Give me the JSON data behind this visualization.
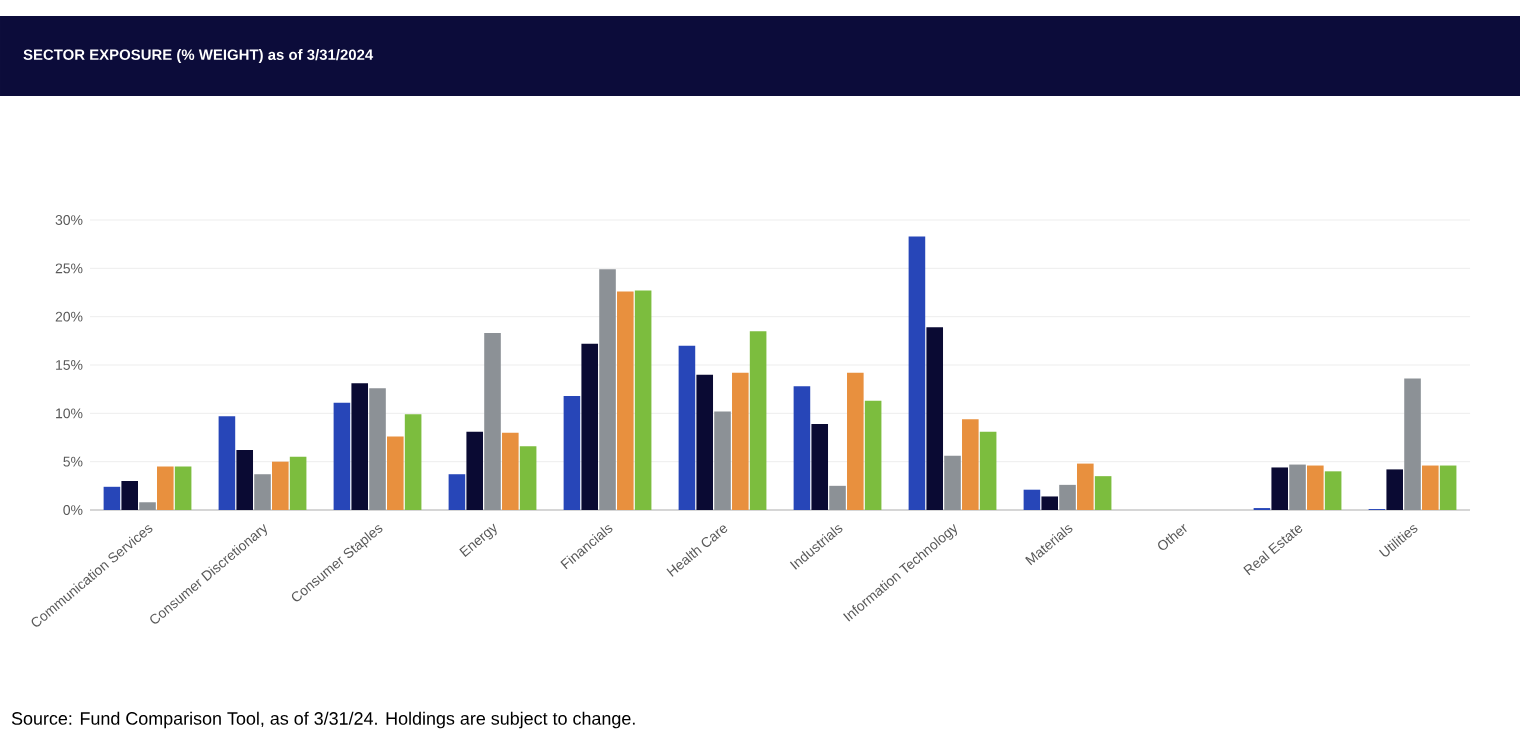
{
  "chart_data": {
    "type": "bar",
    "title": "SECTOR EXPOSURE (% WEIGHT) as of 3/31/2024",
    "categories": [
      "Communication Services",
      "Consumer Discretionary",
      "Consumer Staples",
      "Energy",
      "Financials",
      "Health Care",
      "Industrials",
      "Information Technology",
      "Materials",
      "Other",
      "Real Estate",
      "Utilities"
    ],
    "series": [
      {
        "color": "#2746b8",
        "values": [
          2.4,
          9.7,
          11.1,
          3.7,
          11.8,
          17.0,
          12.8,
          28.3,
          2.1,
          0,
          0.2,
          0.1
        ]
      },
      {
        "color": "#0a0a33",
        "values": [
          3.0,
          6.2,
          13.1,
          8.1,
          17.2,
          14.0,
          8.9,
          18.9,
          1.4,
          0,
          4.4,
          4.2
        ]
      },
      {
        "color": "#8c9196",
        "values": [
          0.8,
          3.7,
          12.6,
          18.3,
          24.9,
          10.2,
          2.5,
          5.6,
          2.6,
          0,
          4.7,
          13.6
        ]
      },
      {
        "color": "#e8903e",
        "values": [
          4.5,
          5.0,
          7.6,
          8.0,
          22.6,
          14.2,
          14.2,
          9.4,
          4.8,
          0,
          4.6,
          4.6
        ]
      },
      {
        "color": "#7cbd3e",
        "values": [
          4.5,
          5.5,
          9.9,
          6.6,
          22.7,
          18.5,
          11.3,
          8.1,
          3.5,
          0,
          4.0,
          4.6
        ]
      }
    ],
    "ylim": [
      0,
      30
    ],
    "yticks": [
      {
        "value": 0,
        "label": "0%"
      },
      {
        "value": 5,
        "label": "5%"
      },
      {
        "value": 10,
        "label": "10%"
      },
      {
        "value": 15,
        "label": "15%"
      },
      {
        "value": 20,
        "label": "20%"
      },
      {
        "value": 25,
        "label": "25%"
      },
      {
        "value": 30,
        "label": "30%"
      }
    ],
    "grid": "y",
    "annotations": [
      "Source: Fund Comparison Tool, as of 3/31/24. Holdings are subject to change."
    ]
  }
}
